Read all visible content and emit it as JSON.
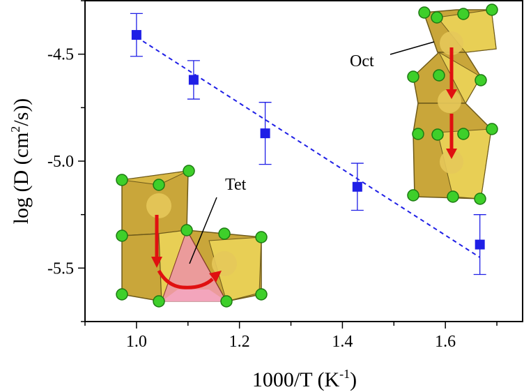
{
  "chart_data": {
    "type": "scatter",
    "xlabel": "1000/T (K",
    "xlabel_sup": "-1",
    "xlabel_close": ")",
    "ylabel": "log (D (cm",
    "ylabel_sup": "2",
    "ylabel_close": "/s))",
    "xlim": [
      0.9,
      1.75
    ],
    "ylim": [
      -5.75,
      -4.25
    ],
    "xticks": [
      "1.0",
      "1.2",
      "1.4",
      "1.6"
    ],
    "yticks": [
      "-4.5",
      "-5.0",
      "-5.5"
    ],
    "points": [
      {
        "x": 1.0,
        "y": -4.41,
        "err": 0.1
      },
      {
        "x": 1.111,
        "y": -4.62,
        "err": 0.09
      },
      {
        "x": 1.25,
        "y": -4.87,
        "err": 0.145
      },
      {
        "x": 1.429,
        "y": -5.12,
        "err": 0.11
      },
      {
        "x": 1.667,
        "y": -5.39,
        "err": 0.14
      }
    ],
    "fit_line": {
      "x": [
        1.0,
        1.667
      ],
      "y": [
        -4.42,
        -5.45
      ],
      "style": "dashed"
    },
    "marker_color": "#1f1fe6",
    "annotations": [
      "Oct",
      "Tet"
    ],
    "grid": false
  }
}
